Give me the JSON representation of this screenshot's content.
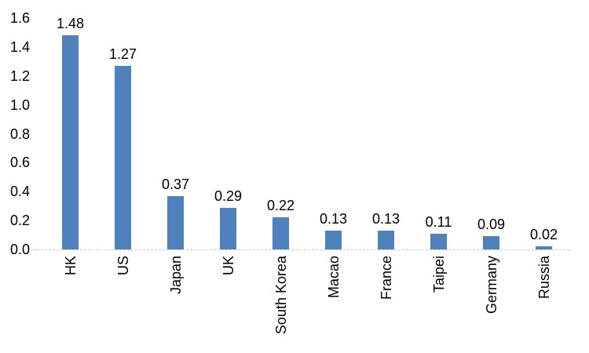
{
  "chart_data": {
    "type": "bar",
    "title": "",
    "xlabel": "",
    "ylabel": "",
    "categories": [
      "HK",
      "US",
      "Japan",
      "UK",
      "South Korea",
      "Macao",
      "France",
      "Taipei",
      "Germany",
      "Russia"
    ],
    "values": [
      1.48,
      1.27,
      0.37,
      0.29,
      0.22,
      0.13,
      0.13,
      0.11,
      0.09,
      0.02
    ],
    "data_labels": [
      "1.48",
      "1.27",
      "0.37",
      "0.29",
      "0.22",
      "0.13",
      "0.13",
      "0.11",
      "0.09",
      "0.02"
    ],
    "y_ticks": [
      "0.0",
      "0.2",
      "0.4",
      "0.6",
      "0.8",
      "1.0",
      "1.2",
      "1.4",
      "1.6"
    ],
    "ylim": [
      0,
      1.6
    ],
    "grid": false,
    "legend_position": "none",
    "category_label_rotation_degrees": 90,
    "colors": {
      "bar_fill": "#4F81BD",
      "axis_line": "#C9C9C9",
      "text": "#000000",
      "background": "#FFFFFF"
    }
  }
}
